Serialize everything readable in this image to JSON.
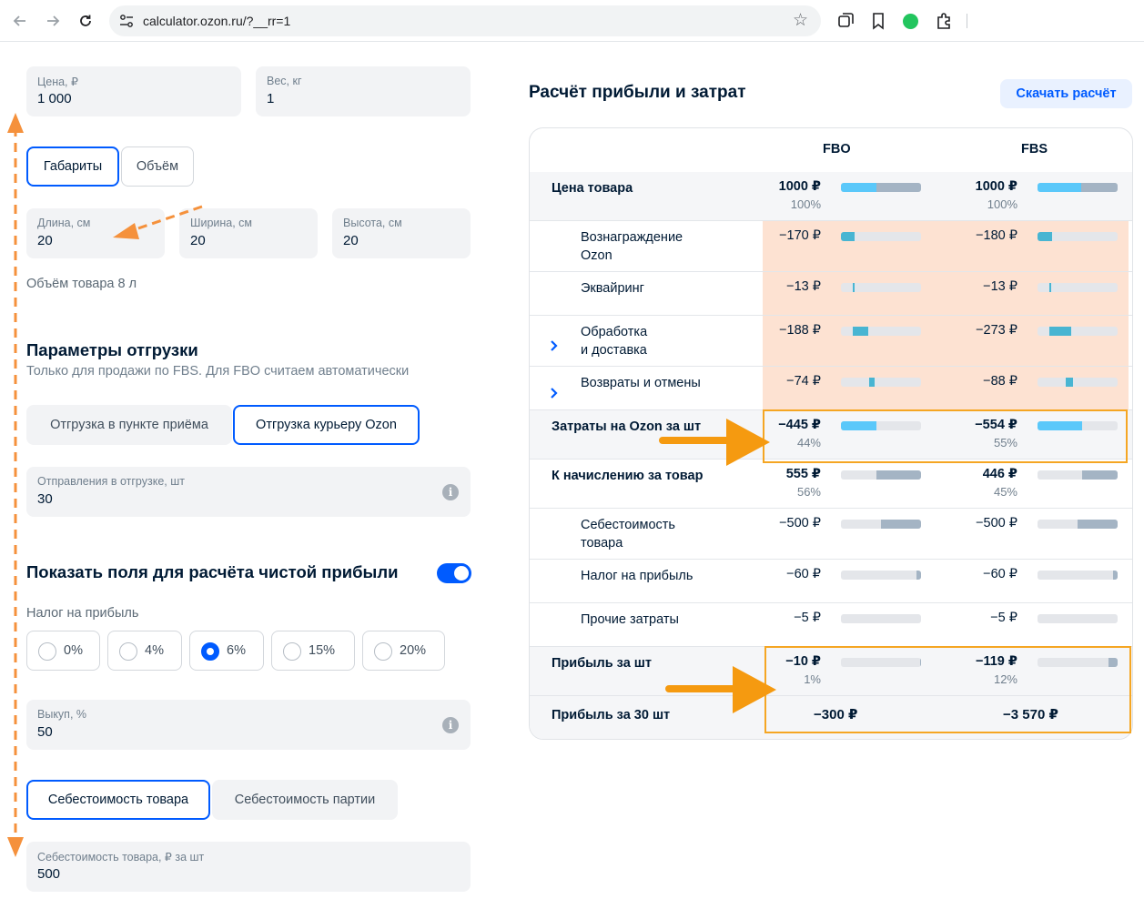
{
  "browser": {
    "url": "calculator.ozon.ru/?__rr=1"
  },
  "form": {
    "price": {
      "label": "Цена, ₽",
      "value": "1 000"
    },
    "weight": {
      "label": "Вес, кг",
      "value": "1"
    },
    "dims_tabs": [
      "Габариты",
      "Объём"
    ],
    "length": {
      "label": "Длина, см",
      "value": "20"
    },
    "width": {
      "label": "Ширина, см",
      "value": "20"
    },
    "height": {
      "label": "Высота, см",
      "value": "20"
    },
    "volume_text": "Объём товара 8 л",
    "shipping_title": "Параметры отгрузки",
    "shipping_sub": "Только для продажи по FBS. Для FBO считаем автоматически",
    "shipping_tabs": [
      "Отгрузка в пункте приёма",
      "Отгрузка курьеру Ozon"
    ],
    "shipments": {
      "label": "Отправления в отгрузке, шт",
      "value": "30"
    },
    "net_profit_title": "Показать поля для расчёта чистой прибыли",
    "net_profit_toggle": true,
    "tax_label": "Налог на прибыль",
    "tax_options": [
      "0%",
      "4%",
      "6%",
      "15%",
      "20%"
    ],
    "tax_selected": "6%",
    "buyout": {
      "label": "Выкуп, %",
      "value": "50"
    },
    "cost_tabs": [
      "Себестоимость товара",
      "Себестоимость партии"
    ],
    "unit_cost": {
      "label": "Себестоимость товара, ₽ за шт",
      "value": "500"
    }
  },
  "panel": {
    "title": "Расчёт прибыли и затрат",
    "download_label": "Скачать расчёт",
    "col_fbo": "FBO",
    "col_fbs": "FBS",
    "rows": [
      {
        "name": "Цена товара",
        "fbo": "1000 ₽",
        "fbo_pct": "100%",
        "fbs": "1000 ₽",
        "fbs_pct": "100%"
      },
      {
        "name": "Вознаграждение\nOzon",
        "fbo": "−170 ₽",
        "fbs": "−180 ₽"
      },
      {
        "name": "Эквайринг",
        "fbo": "−13 ₽",
        "fbs": "−13 ₽"
      },
      {
        "name": "Обработка\nи доставка",
        "fbo": "−188 ₽",
        "fbs": "−273 ₽"
      },
      {
        "name": "Возвраты и отмены",
        "fbo": "−74 ₽",
        "fbs": "−88 ₽"
      },
      {
        "name": "Затраты на Ozon за шт",
        "fbo": "−445 ₽",
        "fbo_pct": "44%",
        "fbs": "−554 ₽",
        "fbs_pct": "55%"
      },
      {
        "name": "К начислению за товар",
        "fbo": "555 ₽",
        "fbo_pct": "56%",
        "fbs": "446 ₽",
        "fbs_pct": "45%"
      },
      {
        "name": "Себестоимость\nтовара",
        "fbo": "−500 ₽",
        "fbs": "−500 ₽"
      },
      {
        "name": "Налог на прибыль",
        "fbo": "−60 ₽",
        "fbs": "−60 ₽"
      },
      {
        "name": "Прочие затраты",
        "fbo": "−5 ₽",
        "fbs": "−5 ₽"
      },
      {
        "name": "Прибыль за шт",
        "fbo": "−10 ₽",
        "fbo_pct": "1%",
        "fbs": "−119 ₽",
        "fbs_pct": "12%"
      },
      {
        "name": "Прибыль за 30 шт",
        "fbo": "−300 ₽",
        "fbs": "−3 570 ₽"
      }
    ],
    "bars": {
      "price_fbo": {
        "blue": 0.44,
        "gray": 0.56
      },
      "price_fbs": {
        "blue": 0.55,
        "gray": 0.45
      },
      "commission_fbo": 0.17,
      "commission_fbs": 0.18,
      "acquiring_fbo": 0.013,
      "acquiring_fbs": 0.013,
      "logistics_fbo": 0.188,
      "logistics_fbs": 0.273,
      "returns_fbo": 0.074,
      "returns_fbs": 0.088,
      "ozon_costs_fbo": 0.445,
      "ozon_costs_fbs": 0.554,
      "payout_fbo": 0.555,
      "payout_fbs": 0.446,
      "unit_cost_fbo": 0.5,
      "unit_cost_fbs": 0.5,
      "tax_fbo": 0.06,
      "tax_fbs": 0.06,
      "other_fbo": 0.005,
      "other_fbs": 0.005,
      "profit_fbo": 0.01,
      "profit_fbs": 0.119
    },
    "colors": {
      "blue": "#5ac8fa",
      "teal": "#48b5d2",
      "gray": "#a4b4c4",
      "peach": "#fde2d2",
      "highlight": "#f5a623"
    }
  }
}
